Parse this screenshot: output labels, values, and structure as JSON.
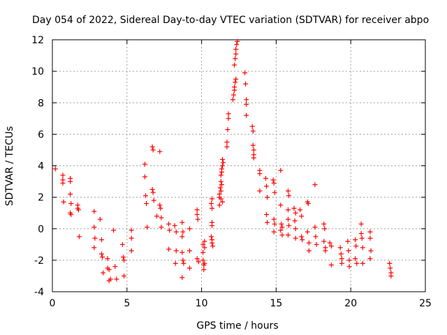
{
  "chart_data": {
    "type": "scatter",
    "title": "Day 054 of 2022, Sidereal Day-to-day VTEC variation (SDTVAR) for receiver abpo",
    "xlabel": "GPS time / hours",
    "ylabel": "SDTVAR / TECUs",
    "xlim": [
      0,
      25
    ],
    "ylim": [
      -4,
      12
    ],
    "xticks": [
      0,
      5,
      10,
      15,
      20,
      25
    ],
    "yticks": [
      -4,
      -2,
      0,
      2,
      4,
      6,
      8,
      10,
      12
    ],
    "grid": true,
    "marker": "plus",
    "color": "#ff0000",
    "series": [
      {
        "name": "SDTVAR",
        "points": [
          [
            0.2,
            3.8
          ],
          [
            0.7,
            3.4
          ],
          [
            0.7,
            3.1
          ],
          [
            0.7,
            2.9
          ],
          [
            0.75,
            1.7
          ],
          [
            1.2,
            3.2
          ],
          [
            1.2,
            3.0
          ],
          [
            1.2,
            2.2
          ],
          [
            1.25,
            1.6
          ],
          [
            1.2,
            1.0
          ],
          [
            1.25,
            0.9
          ],
          [
            1.7,
            1.5
          ],
          [
            1.7,
            1.3
          ],
          [
            1.75,
            1.2
          ],
          [
            1.8,
            -0.5
          ],
          [
            2.8,
            1.1
          ],
          [
            2.8,
            0.1
          ],
          [
            2.85,
            -0.6
          ],
          [
            2.8,
            -1.2
          ],
          [
            3.2,
            0.6
          ],
          [
            3.3,
            -0.7
          ],
          [
            3.3,
            -1.6
          ],
          [
            3.35,
            -1.8
          ],
          [
            3.4,
            -2.8
          ],
          [
            3.7,
            -1.9
          ],
          [
            3.7,
            -2.5
          ],
          [
            3.8,
            -2.6
          ],
          [
            3.8,
            -3.3
          ],
          [
            3.9,
            -3.2
          ],
          [
            4.1,
            -0.1
          ],
          [
            4.2,
            -2.4
          ],
          [
            4.3,
            -3.2
          ],
          [
            4.7,
            -1.0
          ],
          [
            4.75,
            -1.8
          ],
          [
            4.8,
            -2.0
          ],
          [
            4.8,
            -3.0
          ],
          [
            5.3,
            -0.1
          ],
          [
            5.3,
            -0.6
          ],
          [
            5.3,
            -1.4
          ],
          [
            6.2,
            4.1
          ],
          [
            6.2,
            3.3
          ],
          [
            6.25,
            2.1
          ],
          [
            6.3,
            1.6
          ],
          [
            6.35,
            0.1
          ],
          [
            6.7,
            5.2
          ],
          [
            6.75,
            5.0
          ],
          [
            6.7,
            2.5
          ],
          [
            6.75,
            2.3
          ],
          [
            6.8,
            1.8
          ],
          [
            7.0,
            0.8
          ],
          [
            7.2,
            4.9
          ],
          [
            7.2,
            1.5
          ],
          [
            7.25,
            1.3
          ],
          [
            7.3,
            0.7
          ],
          [
            7.3,
            0.1
          ],
          [
            7.8,
            0.3
          ],
          [
            7.85,
            -0.1
          ],
          [
            7.8,
            -1.3
          ],
          [
            8.2,
            0.2
          ],
          [
            8.3,
            -0.2
          ],
          [
            8.3,
            -1.4
          ],
          [
            8.25,
            -2.2
          ],
          [
            8.7,
            0.4
          ],
          [
            8.75,
            -0.2
          ],
          [
            8.7,
            -0.5
          ],
          [
            8.7,
            -1.5
          ],
          [
            8.75,
            -2.0
          ],
          [
            8.8,
            -2.2
          ],
          [
            8.7,
            -3.1
          ],
          [
            9.2,
            0.0
          ],
          [
            9.2,
            -1.4
          ],
          [
            9.2,
            -2.5
          ],
          [
            9.7,
            1.2
          ],
          [
            9.7,
            0.9
          ],
          [
            9.75,
            0.6
          ],
          [
            9.7,
            -1.9
          ],
          [
            9.8,
            -2.1
          ],
          [
            10.1,
            -1.0
          ],
          [
            10.1,
            -1.5
          ],
          [
            10.1,
            -2.0
          ],
          [
            10.15,
            -2.3
          ],
          [
            10.15,
            -2.6
          ],
          [
            10.2,
            -1.2
          ],
          [
            10.2,
            -0.8
          ],
          [
            10.2,
            -2.2
          ],
          [
            10.7,
            1.9
          ],
          [
            10.65,
            1.6
          ],
          [
            10.7,
            1.3
          ],
          [
            10.7,
            0.4
          ],
          [
            10.7,
            0.2
          ],
          [
            10.65,
            -0.5
          ],
          [
            10.7,
            -0.7
          ],
          [
            10.7,
            -0.9
          ],
          [
            10.75,
            -1.1
          ],
          [
            11.2,
            2.0
          ],
          [
            11.2,
            2.2
          ],
          [
            11.25,
            2.6
          ],
          [
            11.3,
            3.0
          ],
          [
            11.3,
            3.4
          ],
          [
            11.35,
            3.6
          ],
          [
            11.35,
            3.8
          ],
          [
            11.4,
            4.0
          ],
          [
            11.45,
            4.2
          ],
          [
            11.4,
            4.4
          ],
          [
            11.3,
            2.4
          ],
          [
            11.35,
            2.8
          ],
          [
            11.4,
            1.7
          ],
          [
            11.2,
            1.5
          ],
          [
            11.3,
            1.9
          ],
          [
            11.7,
            5.2
          ],
          [
            11.7,
            5.5
          ],
          [
            11.75,
            6.3
          ],
          [
            11.8,
            7.0
          ],
          [
            11.8,
            7.3
          ],
          [
            12.1,
            8.2
          ],
          [
            12.15,
            8.5
          ],
          [
            12.2,
            8.8
          ],
          [
            12.2,
            9.0
          ],
          [
            12.25,
            9.3
          ],
          [
            12.3,
            9.5
          ],
          [
            12.2,
            10.4
          ],
          [
            12.25,
            10.8
          ],
          [
            12.3,
            11.1
          ],
          [
            12.3,
            11.4
          ],
          [
            12.35,
            11.7
          ],
          [
            12.4,
            11.9
          ],
          [
            12.9,
            9.9
          ],
          [
            12.95,
            9.2
          ],
          [
            13.0,
            8.2
          ],
          [
            13.0,
            7.9
          ],
          [
            13.0,
            7.2
          ],
          [
            13.4,
            6.5
          ],
          [
            13.45,
            6.2
          ],
          [
            13.45,
            5.3
          ],
          [
            13.5,
            5.0
          ],
          [
            13.5,
            4.7
          ],
          [
            13.5,
            4.5
          ],
          [
            13.9,
            3.7
          ],
          [
            13.9,
            3.5
          ],
          [
            13.9,
            2.4
          ],
          [
            14.3,
            3.2
          ],
          [
            14.35,
            2.7
          ],
          [
            14.4,
            2.0
          ],
          [
            14.35,
            0.9
          ],
          [
            14.4,
            0.4
          ],
          [
            14.8,
            3.1
          ],
          [
            14.85,
            2.9
          ],
          [
            14.9,
            2.3
          ],
          [
            14.85,
            0.6
          ],
          [
            14.9,
            0.3
          ],
          [
            14.85,
            -0.2
          ],
          [
            15.3,
            3.7
          ],
          [
            15.3,
            1.5
          ],
          [
            15.35,
            0.3
          ],
          [
            15.4,
            0.1
          ],
          [
            15.3,
            -0.1
          ],
          [
            15.4,
            -0.4
          ],
          [
            15.8,
            2.4
          ],
          [
            15.85,
            2.1
          ],
          [
            15.8,
            1.2
          ],
          [
            15.8,
            0.6
          ],
          [
            15.85,
            0.2
          ],
          [
            15.8,
            -0.4
          ],
          [
            16.2,
            1.3
          ],
          [
            16.3,
            1.0
          ],
          [
            16.25,
            0.5
          ],
          [
            16.3,
            0.0
          ],
          [
            16.3,
            -0.6
          ],
          [
            16.6,
            1.2
          ],
          [
            16.7,
            0.8
          ],
          [
            16.7,
            -0.5
          ],
          [
            16.75,
            -0.7
          ],
          [
            17.1,
            1.7
          ],
          [
            17.15,
            1.6
          ],
          [
            17.1,
            -0.2
          ],
          [
            17.2,
            -0.9
          ],
          [
            17.2,
            -1.4
          ],
          [
            17.6,
            2.8
          ],
          [
            17.6,
            0.1
          ],
          [
            17.65,
            -0.5
          ],
          [
            17.7,
            -1.0
          ],
          [
            18.2,
            0.3
          ],
          [
            18.25,
            0.0
          ],
          [
            18.2,
            -0.8
          ],
          [
            18.3,
            -1.2
          ],
          [
            18.3,
            -1.4
          ],
          [
            18.6,
            -0.9
          ],
          [
            18.7,
            -1.1
          ],
          [
            18.7,
            -2.3
          ],
          [
            19.3,
            -1.2
          ],
          [
            19.35,
            -1.6
          ],
          [
            19.4,
            -1.9
          ],
          [
            19.4,
            -2.2
          ],
          [
            19.8,
            -0.8
          ],
          [
            19.85,
            -1.4
          ],
          [
            19.9,
            -2.0
          ],
          [
            19.9,
            -2.4
          ],
          [
            20.3,
            -0.7
          ],
          [
            20.35,
            -1.1
          ],
          [
            20.3,
            -1.9
          ],
          [
            20.4,
            -2.2
          ],
          [
            20.7,
            0.3
          ],
          [
            20.7,
            -0.3
          ],
          [
            20.75,
            -0.6
          ],
          [
            20.8,
            -1.2
          ],
          [
            20.8,
            -2.2
          ],
          [
            21.3,
            -0.2
          ],
          [
            21.3,
            -0.6
          ],
          [
            21.35,
            -1.4
          ],
          [
            21.3,
            -1.9
          ],
          [
            22.6,
            -2.2
          ],
          [
            22.65,
            -2.5
          ],
          [
            22.7,
            -2.8
          ],
          [
            22.7,
            -3.0
          ]
        ]
      }
    ]
  }
}
